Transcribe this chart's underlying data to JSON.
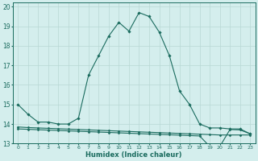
{
  "xlabel": "Humidex (Indice chaleur)",
  "background_color": "#d4eeed",
  "line_color": "#1a6b5e",
  "grid_color": "#b8d8d4",
  "xlim": [
    -0.5,
    23.5
  ],
  "ylim": [
    13,
    20.2
  ],
  "yticks": [
    13,
    14,
    15,
    16,
    17,
    18,
    19,
    20
  ],
  "xticks": [
    0,
    1,
    2,
    3,
    4,
    5,
    6,
    7,
    8,
    9,
    10,
    11,
    12,
    13,
    14,
    15,
    16,
    17,
    18,
    19,
    20,
    21,
    22,
    23
  ],
  "series1_x": [
    0,
    1,
    2,
    3,
    4,
    5,
    6,
    7,
    8,
    9,
    10,
    11,
    12,
    13,
    14,
    15,
    16,
    17,
    18,
    19,
    20,
    21,
    22,
    23
  ],
  "series1_y": [
    15.0,
    14.5,
    14.1,
    14.1,
    14.0,
    14.0,
    14.3,
    16.5,
    17.5,
    18.5,
    19.2,
    18.75,
    19.7,
    19.5,
    18.7,
    17.5,
    15.7,
    15.0,
    14.0,
    13.8,
    13.8,
    13.75,
    13.75,
    13.5
  ],
  "series2_x": [
    0,
    1,
    2,
    3,
    4,
    5,
    6,
    7,
    8,
    9,
    10,
    11,
    12,
    13,
    14,
    15,
    16,
    17,
    18,
    19,
    20,
    21,
    22,
    23
  ],
  "series2_y": [
    13.85,
    13.82,
    13.8,
    13.78,
    13.76,
    13.74,
    13.72,
    13.7,
    13.68,
    13.66,
    13.64,
    13.62,
    13.6,
    13.58,
    13.56,
    13.54,
    13.52,
    13.5,
    13.48,
    13.46,
    13.44,
    13.44,
    13.44,
    13.44
  ],
  "series3_x": [
    0,
    1,
    2,
    3,
    4,
    5,
    6,
    7,
    8,
    9,
    10,
    11,
    12,
    13,
    14,
    15,
    16,
    17,
    18,
    19,
    20,
    21,
    22,
    23
  ],
  "series3_y": [
    13.75,
    13.73,
    13.71,
    13.69,
    13.67,
    13.65,
    13.63,
    13.61,
    13.59,
    13.57,
    13.55,
    13.53,
    13.51,
    13.49,
    13.47,
    13.45,
    13.43,
    13.41,
    13.39,
    12.85,
    12.85,
    13.72,
    13.7,
    13.5
  ]
}
